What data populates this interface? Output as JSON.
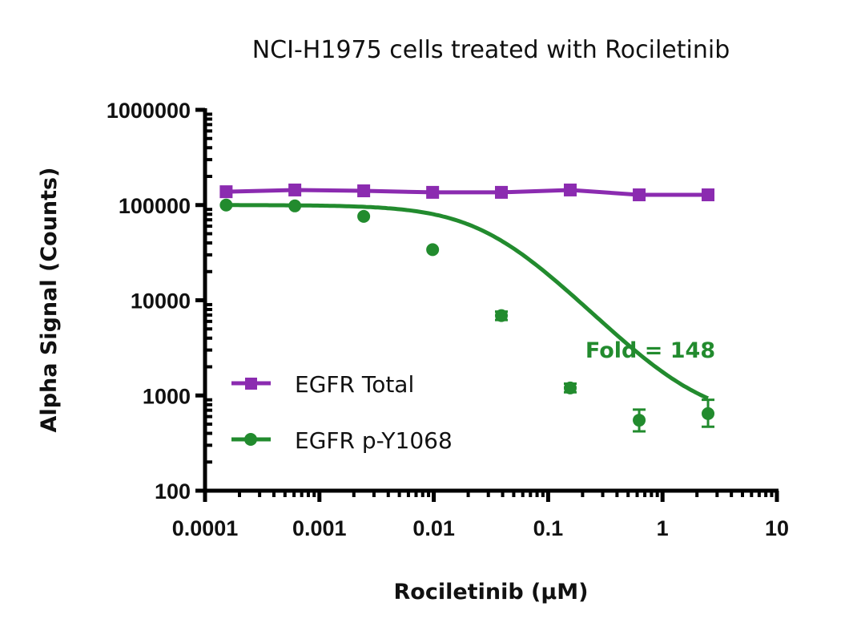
{
  "chart_data": {
    "type": "line",
    "title": "NCI-H1975 cells treated with Rociletinib",
    "xlabel": "Rociletinib (µM)",
    "ylabel": "Alpha Signal (Counts)",
    "xscale": "log",
    "yscale": "log",
    "xlim": [
      0.0001,
      10
    ],
    "ylim": [
      100,
      1000000
    ],
    "x_ticks": [
      "0.0001",
      "0.001",
      "0.01",
      "0.1",
      "1",
      "10"
    ],
    "y_ticks": [
      "100",
      "1000",
      "10000",
      "100000",
      "1000000"
    ],
    "grid": false,
    "legend_position": "inside-lower-left",
    "x": [
      0.000153,
      0.00061,
      0.00244,
      0.00977,
      0.039,
      0.156,
      0.625,
      2.5
    ],
    "series": [
      {
        "name": "EGFR Total",
        "color": "#8b2bb0",
        "marker": "square",
        "values": [
          138000,
          144000,
          141000,
          136000,
          136000,
          144000,
          128000,
          128000
        ]
      },
      {
        "name": "EGFR p-Y1068",
        "color": "#228b2e",
        "marker": "circle",
        "values": [
          100000,
          98000,
          76000,
          34000,
          6900,
          1200,
          550,
          645
        ],
        "error_low": [
          null,
          null,
          null,
          null,
          6200,
          1080,
          420,
          470
        ],
        "error_high": [
          null,
          null,
          null,
          null,
          7600,
          1330,
          710,
          900
        ],
        "fit": "sigmoidal dose-response"
      }
    ],
    "annotations": [
      {
        "text": "Fold = 148",
        "color": "#228b2e"
      }
    ]
  }
}
